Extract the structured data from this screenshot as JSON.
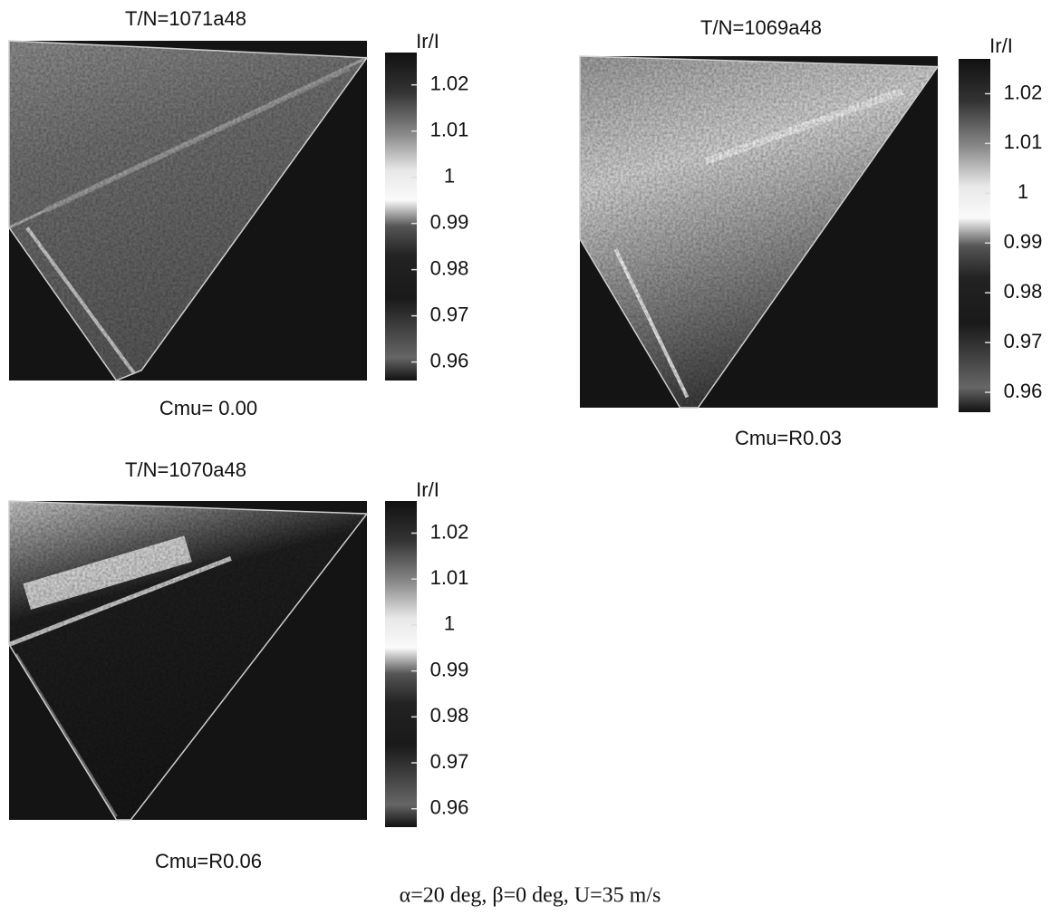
{
  "chart_data": [
    {
      "type": "heatmap",
      "title": "T/N=1071a48",
      "xlabel": "Cmu= 0.00",
      "colorbar_label": "Ir/I",
      "clim": [
        0.956,
        1.027
      ],
      "cticks": [
        0.96,
        0.97,
        0.98,
        0.99,
        1,
        1.01,
        1.02
      ]
    },
    {
      "type": "heatmap",
      "title": "T/N=1069a48",
      "xlabel": "Cmu=R0.03",
      "colorbar_label": "Ir/I",
      "clim": [
        0.956,
        1.027
      ],
      "cticks": [
        0.96,
        0.97,
        0.98,
        0.99,
        1,
        1.01,
        1.02
      ]
    },
    {
      "type": "heatmap",
      "title": "T/N=1070a48",
      "xlabel": "Cmu=R0.06",
      "colorbar_label": "Ir/I",
      "clim": [
        0.956,
        1.027
      ],
      "cticks": [
        0.96,
        0.97,
        0.98,
        0.99,
        1,
        1.01,
        1.02
      ]
    }
  ],
  "caption": "α=20 deg, β=0 deg, U=35 m/s"
}
